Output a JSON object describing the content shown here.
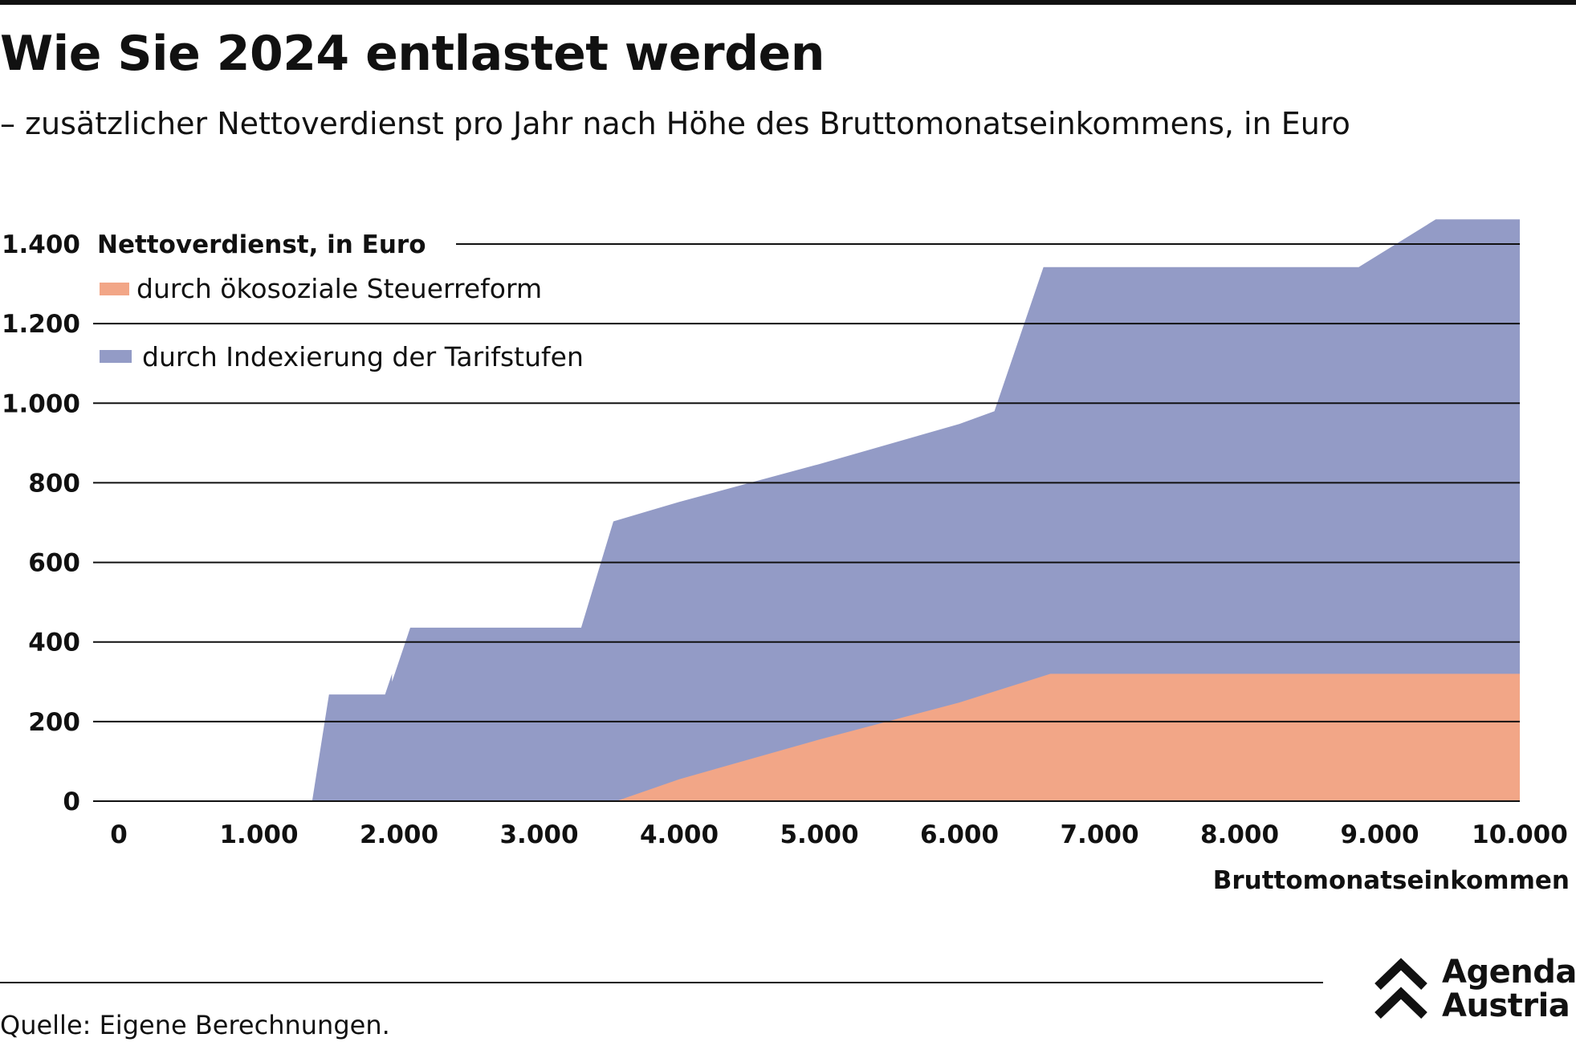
{
  "header": {
    "title": "Wie Sie 2024 entlastet werden",
    "subtitle": "– zusätzlicher Nettoverdienst pro Jahr nach Höhe des Bruttomonatseinkommens, in Euro"
  },
  "chart_data": {
    "type": "area",
    "stacked": true,
    "ylabel": "Nettoverdienst, in Euro",
    "xlabel": "Bruttomonatseinkommen",
    "xlim": [
      0,
      10000
    ],
    "ylim": [
      0,
      1400
    ],
    "xticks": [
      {
        "value": 0,
        "label": "0"
      },
      {
        "value": 1000,
        "label": "1.000"
      },
      {
        "value": 2000,
        "label": "2.000"
      },
      {
        "value": 3000,
        "label": "3.000"
      },
      {
        "value": 4000,
        "label": "4.000"
      },
      {
        "value": 5000,
        "label": "5.000"
      },
      {
        "value": 6000,
        "label": "6.000"
      },
      {
        "value": 7000,
        "label": "7.000"
      },
      {
        "value": 8000,
        "label": "8.000"
      },
      {
        "value": 9000,
        "label": "9.000"
      },
      {
        "value": 10000,
        "label": "10.000"
      }
    ],
    "yticks": [
      {
        "value": 0,
        "label": "0"
      },
      {
        "value": 200,
        "label": "200"
      },
      {
        "value": 400,
        "label": "400"
      },
      {
        "value": 600,
        "label": "600"
      },
      {
        "value": 800,
        "label": "800"
      },
      {
        "value": 1000,
        "label": "1.000"
      },
      {
        "value": 1200,
        "label": "1.200"
      },
      {
        "value": 1400,
        "label": "1.400"
      }
    ],
    "grid": "horizontal",
    "legend_position": "top-left",
    "series": [
      {
        "name": "durch ökosoziale Steuerreform",
        "color": "#f2a687",
        "points": [
          [
            3550,
            0
          ],
          [
            4000,
            55
          ],
          [
            5000,
            155
          ],
          [
            6000,
            248
          ],
          [
            6650,
            320
          ],
          [
            10000,
            320
          ]
        ]
      },
      {
        "name": "durch Indexierung der Tarifstufen",
        "color": "#939bc6",
        "total_points": [
          [
            1380,
            0
          ],
          [
            1500,
            268
          ],
          [
            1900,
            268
          ],
          [
            1950,
            320
          ],
          [
            1950,
            300
          ],
          [
            2080,
            436
          ],
          [
            3300,
            436
          ],
          [
            3530,
            703
          ],
          [
            4000,
            752
          ],
          [
            5000,
            847
          ],
          [
            6000,
            948
          ],
          [
            6250,
            980
          ],
          [
            6600,
            1342
          ],
          [
            8850,
            1342
          ],
          [
            9400,
            1462
          ],
          [
            10000,
            1462
          ]
        ]
      }
    ]
  },
  "source": "Quelle: Eigene Berechnungen.",
  "logo": {
    "line1": "Agenda",
    "line2": "Austria"
  }
}
